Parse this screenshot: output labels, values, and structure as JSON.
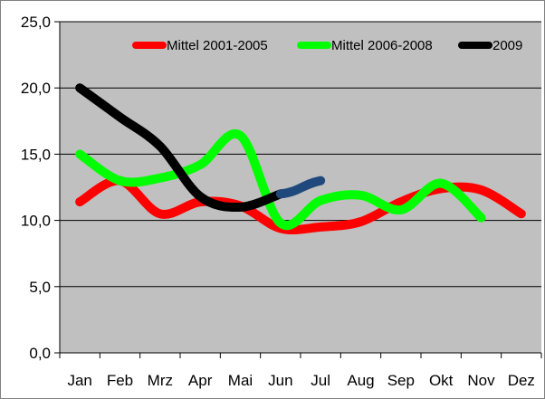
{
  "chart_data": {
    "type": "line",
    "title": "",
    "xlabel": "",
    "ylabel": "",
    "categories": [
      "Jan",
      "Feb",
      "Mrz",
      "Apr",
      "Mai",
      "Jun",
      "Jul",
      "Aug",
      "Sep",
      "Okt",
      "Nov",
      "Dez"
    ],
    "y_ticks": [
      "0,0",
      "5,0",
      "10,0",
      "15,0",
      "20,0",
      "25,0"
    ],
    "ylim": [
      0,
      25
    ],
    "grid": true,
    "plot_background": "#c0c0c0",
    "legend_position": "top-right",
    "series": [
      {
        "name": "Mittel 2001-2005",
        "color": "#ff0000",
        "values": [
          11.4,
          13.0,
          10.5,
          11.4,
          11.1,
          9.4,
          9.5,
          9.9,
          11.4,
          12.4,
          12.3,
          10.5
        ]
      },
      {
        "name": "Mittel 2006-2008",
        "color": "#00ff00",
        "values": [
          15.0,
          13.0,
          13.2,
          14.2,
          16.4,
          9.8,
          11.5,
          11.9,
          10.8,
          12.8,
          10.2,
          null
        ]
      },
      {
        "name": "2009",
        "color": "#000000",
        "values": [
          20.0,
          17.8,
          15.6,
          11.8,
          11.0,
          12.0,
          null,
          null,
          null,
          null,
          null,
          null
        ]
      }
    ],
    "extra_segment": {
      "color": "#1f497d",
      "from": [
        "Jun",
        12.0
      ],
      "to": [
        "Jul",
        13.0
      ]
    }
  }
}
